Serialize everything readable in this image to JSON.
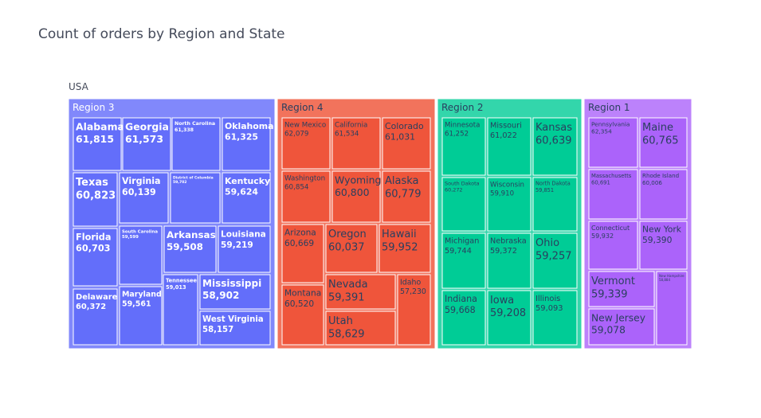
{
  "chart_data": {
    "type": "treemap",
    "title": "Count of orders by Region and State",
    "root": "USA",
    "regions": [
      {
        "name": "Region 3",
        "color": "#636efa",
        "header_color": "#8188fb",
        "label_color": "#ffffff",
        "states": [
          {
            "name": "Alabama",
            "value": "61,815"
          },
          {
            "name": "Georgia",
            "value": "61,573"
          },
          {
            "name": "North Carolina",
            "value": "61,338"
          },
          {
            "name": "Oklahoma",
            "value": "61,325"
          },
          {
            "name": "Texas",
            "value": "60,823"
          },
          {
            "name": "Virginia",
            "value": "60,139"
          },
          {
            "name": "District of Columbia",
            "value": "59,702"
          },
          {
            "name": "Kentucky",
            "value": "59,624"
          },
          {
            "name": "Florida",
            "value": "60,703"
          },
          {
            "name": "South Carolina",
            "value": "59,599"
          },
          {
            "name": "Arkansas",
            "value": "59,508"
          },
          {
            "name": "Louisiana",
            "value": "59,219"
          },
          {
            "name": "Tennessee",
            "value": "59,013"
          },
          {
            "name": "Mississippi",
            "value": "58,902"
          },
          {
            "name": "Delaware",
            "value": "60,372"
          },
          {
            "name": "Maryland",
            "value": "59,561"
          },
          {
            "name": "West Virginia",
            "value": "58,157"
          }
        ]
      },
      {
        "name": "Region 4",
        "color": "#ef553b",
        "header_color": "#f2735c",
        "label_color": "#2a3f5f",
        "states": [
          {
            "name": "New Mexico",
            "value": "62,079"
          },
          {
            "name": "California",
            "value": "61,534"
          },
          {
            "name": "Colorado",
            "value": "61,031"
          },
          {
            "name": "Washington",
            "value": "60,854"
          },
          {
            "name": "Wyoming",
            "value": "60,800"
          },
          {
            "name": "Alaska",
            "value": "60,779"
          },
          {
            "name": "Arizona",
            "value": "60,669"
          },
          {
            "name": "Oregon",
            "value": "60,037"
          },
          {
            "name": "Hawaii",
            "value": "59,952"
          },
          {
            "name": "Montana",
            "value": "60,520"
          },
          {
            "name": "Nevada",
            "value": "59,391"
          },
          {
            "name": "Idaho",
            "value": "57,230"
          },
          {
            "name": "Utah",
            "value": "58,629"
          }
        ]
      },
      {
        "name": "Region 2",
        "color": "#00cc96",
        "header_color": "#33d6ab",
        "label_color": "#2a3f5f",
        "states": [
          {
            "name": "Minnesota",
            "value": "61,252"
          },
          {
            "name": "Missouri",
            "value": "61,022"
          },
          {
            "name": "Kansas",
            "value": "60,639"
          },
          {
            "name": "South Dakota",
            "value": "60,272"
          },
          {
            "name": "Wisconsin",
            "value": "59,910"
          },
          {
            "name": "North Dakota",
            "value": "59,851"
          },
          {
            "name": "Michigan",
            "value": "59,744"
          },
          {
            "name": "Nebraska",
            "value": "59,372"
          },
          {
            "name": "Ohio",
            "value": "59,257"
          },
          {
            "name": "Indiana",
            "value": "59,668"
          },
          {
            "name": "Iowa",
            "value": "59,208"
          },
          {
            "name": "Illinois",
            "value": "59,093"
          }
        ]
      },
      {
        "name": "Region 1",
        "color": "#ab63fa",
        "header_color": "#bc82fb",
        "label_color": "#2a3f5f",
        "states": [
          {
            "name": "Pennsylvania",
            "value": "62,354"
          },
          {
            "name": "Maine",
            "value": "60,765"
          },
          {
            "name": "Massachusetts",
            "value": "60,691"
          },
          {
            "name": "Rhode Island",
            "value": "60,006"
          },
          {
            "name": "Connecticut",
            "value": "59,932"
          },
          {
            "name": "New York",
            "value": "59,390"
          },
          {
            "name": "Vermont",
            "value": "59,339"
          },
          {
            "name": "New Hampshire",
            "value": "58,884"
          },
          {
            "name": "New Jersey",
            "value": "59,078"
          }
        ]
      }
    ]
  }
}
